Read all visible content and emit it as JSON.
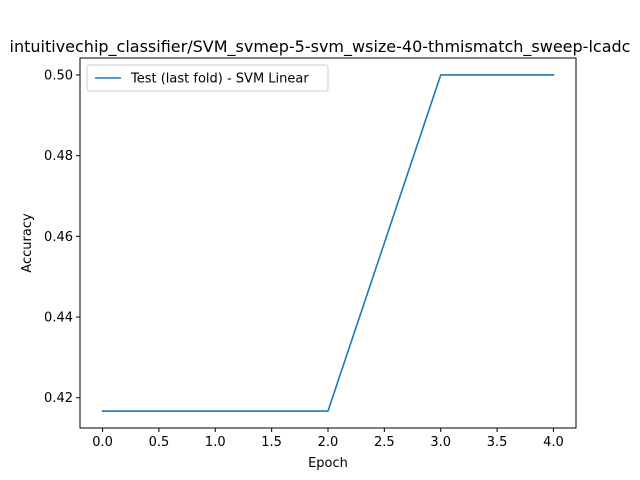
{
  "chart_data": {
    "type": "line",
    "title": "intuitivechip_classifier/SVM_svmep-5-svm_wsize-40-thmismatch_sweep-lcadc",
    "xlabel": "Epoch",
    "ylabel": "Accuracy",
    "xlim": [
      -0.2,
      4.2
    ],
    "ylim": [
      0.4125,
      0.5042
    ],
    "x_ticks": [
      0.0,
      0.5,
      1.0,
      1.5,
      2.0,
      2.5,
      3.0,
      3.5,
      4.0
    ],
    "x_tick_labels": [
      "0.0",
      "0.5",
      "1.0",
      "1.5",
      "2.0",
      "2.5",
      "3.0",
      "3.5",
      "4.0"
    ],
    "y_ticks": [
      0.42,
      0.44,
      0.46,
      0.48,
      0.5
    ],
    "y_tick_labels": [
      "0.42",
      "0.44",
      "0.46",
      "0.48",
      "0.50"
    ],
    "grid": false,
    "legend_position": "top-left",
    "series": [
      {
        "name": "Test (last fold) - SVM Linear",
        "color": "#1f77b4",
        "x": [
          0,
          1,
          2,
          3,
          4
        ],
        "y": [
          0.4167,
          0.4167,
          0.4167,
          0.5,
          0.5
        ]
      }
    ]
  }
}
